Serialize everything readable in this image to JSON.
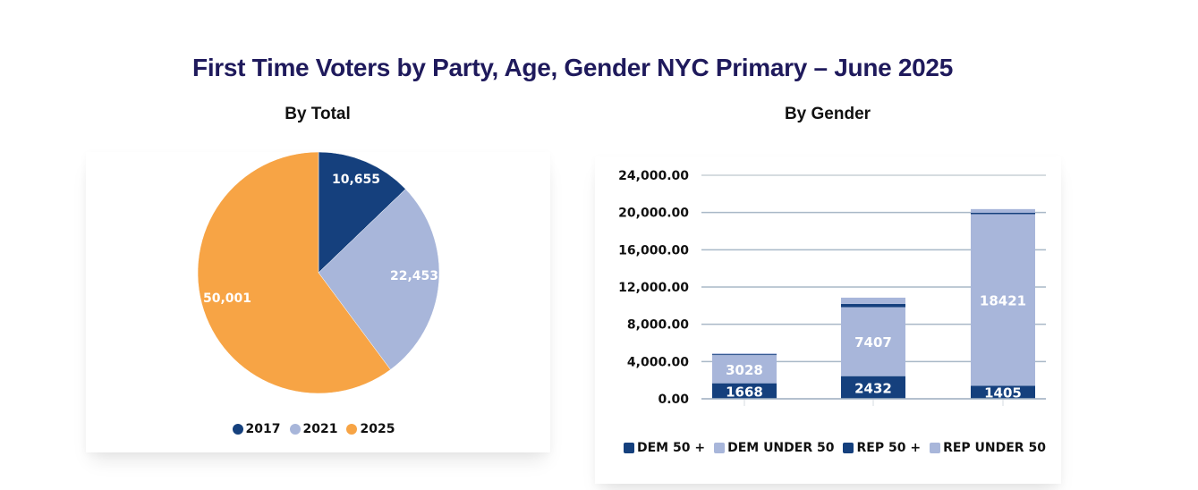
{
  "page": {
    "title": "First Time Voters by Party, Age, Gender NYC Primary – June 2025"
  },
  "colors": {
    "title": "#1f1a5c",
    "dark_blue": "#15407d",
    "light_blue": "#a8b6da",
    "orange": "#f7a445",
    "grid": "#b4c0cc"
  },
  "chart_data": [
    {
      "type": "pie",
      "title": "By Total",
      "categories": [
        "2017",
        "2021",
        "2025"
      ],
      "values": [
        10655,
        22453,
        50001
      ],
      "data_labels": [
        "10,655",
        "22,453",
        "50,001"
      ],
      "colors": [
        "#15407d",
        "#a8b6da",
        "#f7a445"
      ],
      "legend": {
        "position": "bottom",
        "entries": [
          "2017",
          "2021",
          "2025"
        ]
      }
    },
    {
      "type": "bar",
      "stacked": true,
      "title": "By Gender",
      "xlabel": "",
      "ylabel": "",
      "categories": [
        "",
        "",
        ""
      ],
      "ylim": [
        0,
        24000
      ],
      "yticks": [
        0,
        4000,
        8000,
        12000,
        16000,
        20000,
        24000
      ],
      "ytick_labels": [
        "0.00",
        "4,000.00",
        "8,000.00",
        "12,000.00",
        "16,000.00",
        "20,000.00",
        "24,000.00"
      ],
      "grid": true,
      "series": [
        {
          "name": "DEM 50 +",
          "color": "#15407d",
          "values": [
            1668,
            2432,
            1405
          ],
          "labels": [
            "1668",
            "2432",
            "1405"
          ]
        },
        {
          "name": "DEM UNDER 50",
          "color": "#a8b6da",
          "values": [
            3028,
            7407,
            18421
          ],
          "labels": [
            "3028",
            "7407",
            "18421"
          ]
        },
        {
          "name": "REP 50 +",
          "color": "#15407d",
          "values": [
            100,
            340,
            150
          ],
          "labels": [
            "",
            "",
            ""
          ]
        },
        {
          "name": "REP UNDER 50",
          "color": "#a8b6da",
          "values": [
            80,
            680,
            390
          ],
          "labels": [
            "",
            "",
            ""
          ]
        }
      ],
      "legend": {
        "position": "bottom",
        "entries": [
          "DEM 50 +",
          "DEM UNDER 50",
          "REP 50 +",
          "REP UNDER 50"
        ]
      }
    }
  ]
}
